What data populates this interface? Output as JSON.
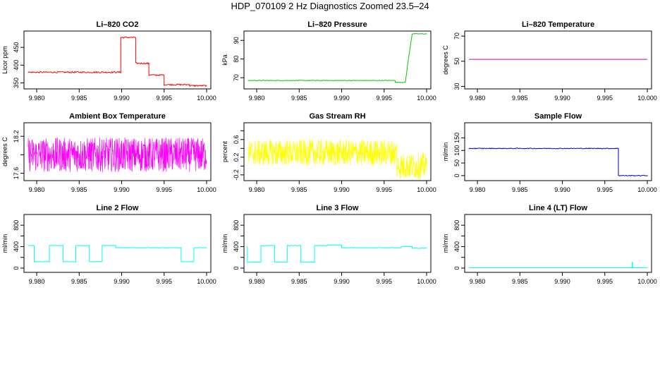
{
  "figure": {
    "title": "HDP_070109  2 Hz Diagnostics Zoomed 23.5–24"
  },
  "chart_data": [
    {
      "type": "line",
      "title": "Li–820 CO2",
      "ylabel": "Licor ppm",
      "color": "#ff0000",
      "xlim": [
        9.9785,
        10.0005
      ],
      "ylim": [
        333,
        496
      ],
      "xticks": [
        9.98,
        9.985,
        9.99,
        9.995,
        10.0
      ],
      "xticklabels": [
        "9.980",
        "9.985",
        "9.990",
        "9.995",
        "10.000"
      ],
      "yticks": [
        350,
        400,
        450
      ],
      "series": [
        {
          "x": [
            9.979,
            9.9899,
            9.9899,
            9.99165,
            9.99165,
            9.9932,
            9.9932,
            9.995,
            9.995,
            9.998,
            9.998,
            10.0
          ],
          "y": [
            380,
            380,
            478,
            478,
            405,
            405,
            372,
            372,
            345,
            345,
            342,
            342
          ],
          "noise": 2
        }
      ]
    },
    {
      "type": "line",
      "title": "Li–820 Pressure",
      "ylabel": "kPa",
      "color": "#00cc00",
      "xlim": [
        9.9785,
        10.0005
      ],
      "ylim": [
        64,
        95
      ],
      "xticks": [
        9.98,
        9.985,
        9.99,
        9.995,
        10.0
      ],
      "xticklabels": [
        "9.980",
        "9.985",
        "9.990",
        "9.995",
        "10.000"
      ],
      "yticks": [
        70,
        80,
        90
      ],
      "series": [
        {
          "x": [
            9.979,
            9.9963,
            9.9963,
            9.9975,
            9.9978,
            9.9983,
            10.0
          ],
          "y": [
            68.5,
            68.5,
            67.5,
            67.5,
            78,
            93.5,
            93.5
          ],
          "noise": 0.15
        }
      ]
    },
    {
      "type": "line",
      "title": "Li–820 Temperature",
      "ylabel": "degrees C",
      "color": "#cc00cc",
      "xlim": [
        9.9785,
        10.0005
      ],
      "ylim": [
        28,
        74
      ],
      "xticks": [
        9.98,
        9.985,
        9.99,
        9.995,
        10.0
      ],
      "xticklabels": [
        "9.980",
        "9.985",
        "9.990",
        "9.995",
        "10.000"
      ],
      "yticks": [
        30,
        50,
        70
      ],
      "series": [
        {
          "x": [
            9.979,
            10.0
          ],
          "y": [
            51.5,
            51.5
          ],
          "noise": 0
        }
      ]
    },
    {
      "type": "line",
      "title": "Ambient Box Temperature",
      "ylabel": "degrees C",
      "color": "#ff00ff",
      "xlim": [
        9.9785,
        10.0005
      ],
      "ylim": [
        17.48,
        18.42
      ],
      "xticks": [
        9.98,
        9.985,
        9.99,
        9.995,
        10.0
      ],
      "xticklabels": [
        "9.980",
        "9.985",
        "9.990",
        "9.995",
        "10.000"
      ],
      "yticks": [
        17.6,
        17.9,
        18.2
      ],
      "yticklabels": [
        "17.6",
        "",
        "18.2"
      ],
      "series": [
        {
          "x": [
            9.979,
            10.0
          ],
          "y": [
            17.9,
            17.9
          ],
          "noise": 0.28,
          "dense": true
        }
      ]
    },
    {
      "type": "line",
      "title": "Gas Stream RH",
      "ylabel": "percent",
      "color": "#ffff00",
      "xlim": [
        9.9785,
        10.0005
      ],
      "ylim": [
        -0.33,
        0.98
      ],
      "xticks": [
        9.98,
        9.985,
        9.99,
        9.995,
        10.0
      ],
      "xticklabels": [
        "9.980",
        "9.985",
        "9.990",
        "9.995",
        "10.000"
      ],
      "yticks": [
        -0.2,
        0.2,
        0.6
      ],
      "yminor": [
        0.0,
        0.4,
        0.8
      ],
      "series": [
        {
          "x": [
            9.979,
            9.9965,
            9.9965,
            10.0
          ],
          "y": [
            0.3,
            0.3,
            0.0,
            0.0
          ],
          "noise": 0.3,
          "dense": true
        }
      ]
    },
    {
      "type": "line",
      "title": "Sample Flow",
      "ylabel": "ml/min",
      "color": "#0000cc",
      "xlim": [
        9.9785,
        10.0005
      ],
      "ylim": [
        -20,
        210
      ],
      "xticks": [
        9.98,
        9.985,
        9.99,
        9.995,
        10.0
      ],
      "xticklabels": [
        "9.980",
        "9.985",
        "9.990",
        "9.995",
        "10.000"
      ],
      "yticks": [
        0,
        50,
        100,
        150
      ],
      "series": [
        {
          "x": [
            9.979,
            9.9966,
            9.9966,
            10.0
          ],
          "y": [
            108,
            108,
            0,
            0
          ],
          "noise": 1.5
        }
      ]
    },
    {
      "type": "line",
      "title": "Line 2 Flow",
      "ylabel": "ml/min",
      "color": "#00ffff",
      "xlim": [
        9.9785,
        10.0005
      ],
      "ylim": [
        -80,
        1000
      ],
      "xticks": [
        9.98,
        9.985,
        9.99,
        9.995,
        10.0
      ],
      "xticklabels": [
        "9.980",
        "9.985",
        "9.990",
        "9.995",
        "10.000"
      ],
      "yticks": [
        0,
        400,
        800
      ],
      "yminor": [
        200,
        600
      ],
      "series": [
        {
          "x": [
            9.979,
            9.9797,
            9.9797,
            9.9815,
            9.9815,
            9.9831,
            9.9831,
            9.9846,
            9.9846,
            9.9862,
            9.9862,
            9.9877,
            9.9877,
            9.9893,
            9.9893,
            9.997,
            9.997,
            9.9985,
            9.9985,
            10.0
          ],
          "y": [
            420,
            420,
            120,
            120,
            420,
            420,
            120,
            120,
            420,
            420,
            120,
            120,
            420,
            420,
            380,
            380,
            120,
            120,
            380,
            380
          ],
          "noise": 5
        }
      ]
    },
    {
      "type": "line",
      "title": "Line 3 Flow",
      "ylabel": "ml/min",
      "color": "#00ffff",
      "xlim": [
        9.9785,
        10.0005
      ],
      "ylim": [
        -80,
        1000
      ],
      "xticks": [
        9.98,
        9.985,
        9.99,
        9.995,
        10.0
      ],
      "xticklabels": [
        "9.980",
        "9.985",
        "9.990",
        "9.995",
        "10.000"
      ],
      "yticks": [
        0,
        400,
        800
      ],
      "yminor": [
        200,
        600
      ],
      "series": [
        {
          "x": [
            9.979,
            9.9789,
            9.9789,
            9.9805,
            9.9805,
            9.9821,
            9.9821,
            9.9836,
            9.9836,
            9.9852,
            9.9852,
            9.9868,
            9.9868,
            9.9883,
            9.9883,
            9.99,
            9.99,
            9.997,
            9.997,
            9.9983,
            9.9983,
            10.0
          ],
          "y": [
            400,
            400,
            110,
            110,
            420,
            420,
            110,
            110,
            420,
            420,
            110,
            110,
            420,
            420,
            430,
            430,
            380,
            380,
            400,
            400,
            370,
            370
          ],
          "noise": 5
        }
      ]
    },
    {
      "type": "line",
      "title": "Line 4 (LT) Flow",
      "ylabel": "ml/min",
      "color": "#00ffff",
      "xlim": [
        9.9785,
        10.0005
      ],
      "ylim": [
        -80,
        1000
      ],
      "xticks": [
        9.98,
        9.985,
        9.99,
        9.995,
        10.0
      ],
      "xticklabels": [
        "9.980",
        "9.985",
        "9.990",
        "9.995",
        "10.000"
      ],
      "yticks": [
        0,
        400,
        800
      ],
      "yminor": [
        200,
        600
      ],
      "series": [
        {
          "x": [
            9.979,
            9.9982,
            9.9982,
            9.99825,
            9.99825,
            9.9983,
            9.9983,
            10.0
          ],
          "y": [
            5,
            5,
            110,
            110,
            5,
            5,
            5,
            5
          ],
          "noise": 0
        }
      ]
    }
  ]
}
